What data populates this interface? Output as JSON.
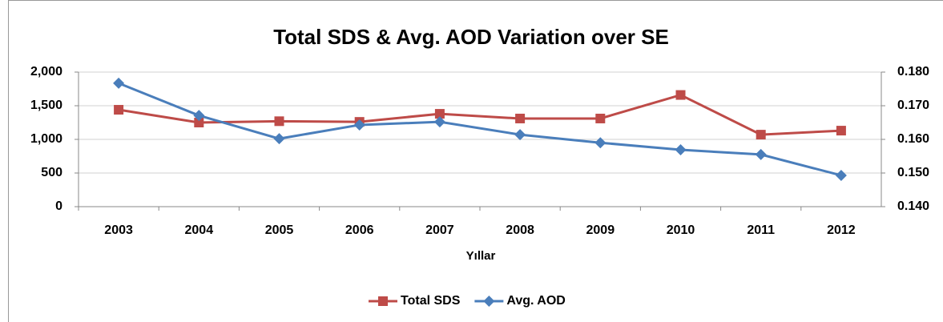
{
  "chart_data": {
    "type": "line",
    "title": "Total SDS & Avg. AOD Variation over SE",
    "x_label": "Yıllar",
    "categories": [
      "2003",
      "2004",
      "2005",
      "2006",
      "2007",
      "2008",
      "2009",
      "2010",
      "2011",
      "2012"
    ],
    "series": [
      {
        "name": "Total SDS",
        "color": "#be4b48",
        "marker": "square",
        "values": [
          1440,
          1250,
          1270,
          1260,
          1380,
          1310,
          1310,
          1660,
          1070,
          1130
        ]
      },
      {
        "name": "Avg. AOD",
        "color": "#4a7ebb",
        "marker": "diamond",
        "axis": "y2",
        "values": [
          0.1767,
          0.1671,
          0.1602,
          0.1643,
          0.1652,
          0.1614,
          0.159,
          0.1569,
          0.1555,
          0.1493
        ]
      }
    ],
    "ylim": [
      0,
      2000
    ],
    "yticks": [
      0,
      500,
      {
        "value": 1000,
        "label": "1,000"
      },
      {
        "value": 1500,
        "label": "1,500"
      },
      {
        "value": 2000,
        "label": "2,000"
      }
    ],
    "y2lim": [
      0.14,
      0.18
    ],
    "y2ticks": [
      {
        "value": 0.14,
        "label": "0.140"
      },
      {
        "value": 0.15,
        "label": "0.150"
      },
      {
        "value": 0.16,
        "label": "0.160"
      },
      {
        "value": 0.17,
        "label": "0.170"
      },
      {
        "value": 0.18,
        "label": "0.180"
      }
    ],
    "ytick_color": "#c00000",
    "y2tick_color": "#0070c0",
    "grid": true,
    "legend": "bottom"
  }
}
